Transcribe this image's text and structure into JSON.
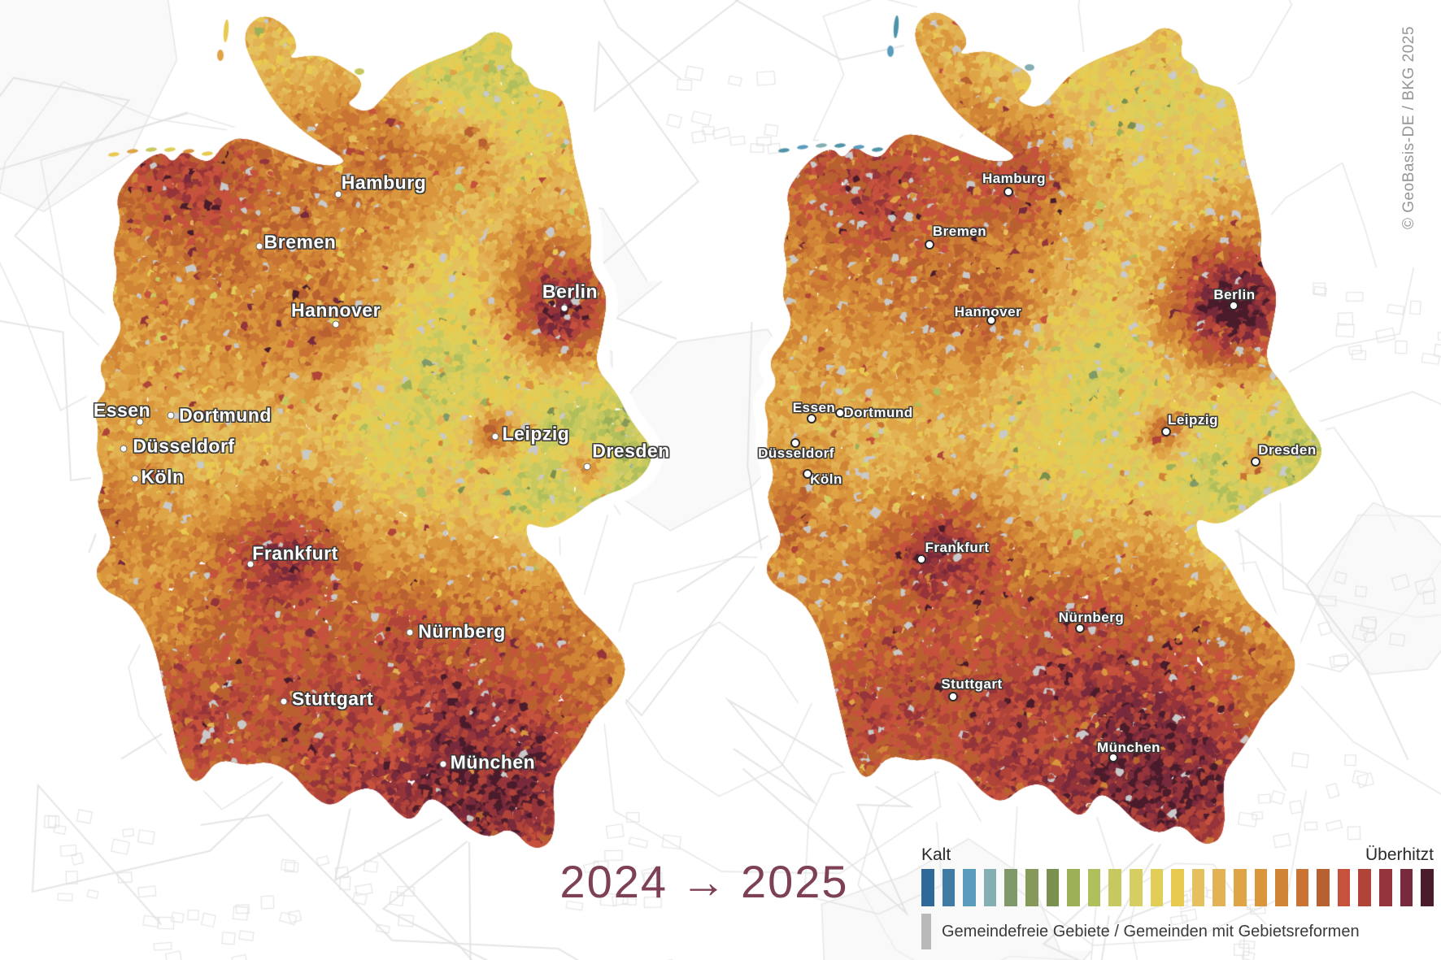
{
  "title": {
    "text_from": "2024",
    "arrow": "→",
    "text_to": "2025",
    "color": "#7d4057"
  },
  "attribution": "© GeoBasis-DE / BKG 2025",
  "legend": {
    "min_label": "Kalt",
    "max_label": "Überhitzt",
    "note": "Gemeindefreie Gebiete / Gemeinden mit Gebietsreformen",
    "missing_color": "#b9b9b9",
    "colors": [
      "#2f6999",
      "#3f7ca3",
      "#5b9cbd",
      "#85aeb2",
      "#7f9a68",
      "#87995a",
      "#7b8f4e",
      "#9cb057",
      "#b0bf5b",
      "#c6c95f",
      "#d6ce60",
      "#e0ce58",
      "#e8ca50",
      "#e5c05e",
      "#e2b254",
      "#dfa446",
      "#da963d",
      "#d08536",
      "#c97434",
      "#b96030",
      "#c6523e",
      "#b14439",
      "#95343a",
      "#782a3c",
      "#4a1c2b"
    ]
  },
  "maps": {
    "left": {
      "label": "2024",
      "cities": [
        {
          "name": "Hamburg",
          "label": [
            472,
            225
          ],
          "dot": [
            416,
            239
          ]
        },
        {
          "name": "Bremen",
          "label": [
            369,
            298
          ],
          "dot": [
            319,
            303
          ]
        },
        {
          "name": "Hannover",
          "label": [
            413,
            382
          ],
          "dot": [
            413,
            399
          ]
        },
        {
          "name": "Berlin",
          "label": [
            701,
            359
          ],
          "dot": [
            694,
            379
          ]
        },
        {
          "name": "Essen",
          "label": [
            150,
            505
          ],
          "dot": [
            172,
            519
          ]
        },
        {
          "name": "Dortmund",
          "label": [
            277,
            511
          ],
          "dot": [
            210,
            511
          ]
        },
        {
          "name": "Düsseldorf",
          "label": [
            226,
            549
          ],
          "dot": [
            152,
            552
          ]
        },
        {
          "name": "Köln",
          "label": [
            200,
            587
          ],
          "dot": [
            166,
            589
          ]
        },
        {
          "name": "Leipzig",
          "label": [
            659,
            534
          ],
          "dot": [
            609,
            537
          ]
        },
        {
          "name": "Dresden",
          "label": [
            776,
            555
          ],
          "dot": [
            722,
            574
          ]
        },
        {
          "name": "Frankfurt",
          "label": [
            363,
            681
          ],
          "dot": [
            308,
            694
          ]
        },
        {
          "name": "Nürnberg",
          "label": [
            568,
            777
          ],
          "dot": [
            504,
            778
          ]
        },
        {
          "name": "Stuttgart",
          "label": [
            409,
            860
          ],
          "dot": [
            349,
            863
          ]
        },
        {
          "name": "München",
          "label": [
            606,
            938
          ],
          "dot": [
            545,
            940
          ]
        }
      ]
    },
    "right": {
      "label": "2025",
      "cities": [
        {
          "name": "Hamburg",
          "label": [
            1247,
            220
          ],
          "dot": [
            1240,
            236
          ]
        },
        {
          "name": "Bremen",
          "label": [
            1180,
            285
          ],
          "dot": [
            1143,
            301
          ]
        },
        {
          "name": "Hannover",
          "label": [
            1215,
            384
          ],
          "dot": [
            1219,
            394
          ]
        },
        {
          "name": "Berlin",
          "label": [
            1518,
            363
          ],
          "dot": [
            1517,
            376
          ]
        },
        {
          "name": "Essen",
          "label": [
            1001,
            502
          ],
          "dot": [
            998,
            515
          ]
        },
        {
          "name": "Dortmund",
          "label": [
            1080,
            508
          ],
          "dot": [
            1033,
            508
          ]
        },
        {
          "name": "Düsseldorf",
          "label": [
            979,
            558
          ],
          "dot": [
            978,
            545
          ]
        },
        {
          "name": "Köln",
          "label": [
            1016,
            590
          ],
          "dot": [
            993,
            583
          ]
        },
        {
          "name": "Leipzig",
          "label": [
            1467,
            517
          ],
          "dot": [
            1434,
            531
          ]
        },
        {
          "name": "Dresden",
          "label": [
            1583,
            554
          ],
          "dot": [
            1544,
            568
          ]
        },
        {
          "name": "Frankfurt",
          "label": [
            1177,
            674
          ],
          "dot": [
            1133,
            688
          ]
        },
        {
          "name": "Nürnberg",
          "label": [
            1342,
            760
          ],
          "dot": [
            1328,
            773
          ]
        },
        {
          "name": "Stuttgart",
          "label": [
            1195,
            842
          ],
          "dot": [
            1172,
            857
          ]
        },
        {
          "name": "München",
          "label": [
            1388,
            920
          ],
          "dot": [
            1369,
            932
          ]
        }
      ]
    }
  }
}
